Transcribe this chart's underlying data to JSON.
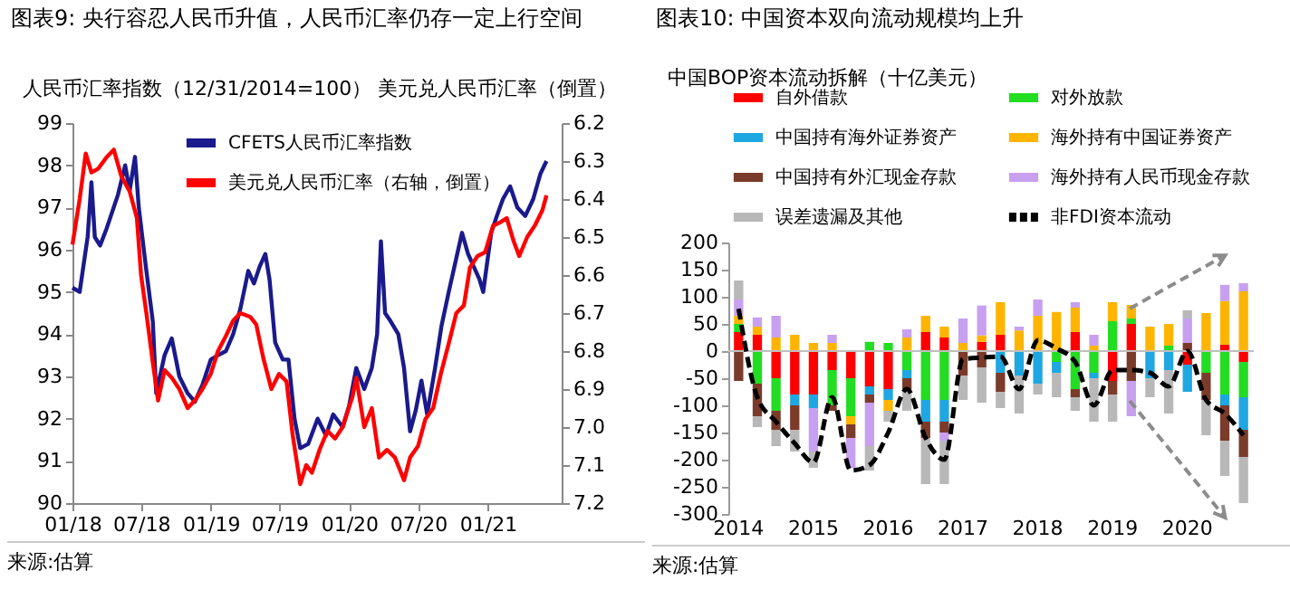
{
  "chart_data": [
    {
      "type": "line",
      "title": "图表9: 央行容忍人民币升值，人民币汇率仍存一定上行空间",
      "ylabel": "人民币汇率指数（12/31/2014=100）",
      "y2label": "美元兑人民币汇率（倒置）",
      "legend": "top",
      "xlim": [
        "2018-01-01",
        "2021-07-15"
      ],
      "xticks": [
        {
          "value": "2018-01-01",
          "label": "01/18"
        },
        {
          "value": "2018-07-01",
          "label": "07/18"
        },
        {
          "value": "2019-01-01",
          "label": "01/19"
        },
        {
          "value": "2019-07-01",
          "label": "07/19"
        },
        {
          "value": "2020-01-01",
          "label": "01/20"
        },
        {
          "value": "2020-07-01",
          "label": "07/20"
        },
        {
          "value": "2021-01-01",
          "label": "01/21"
        }
      ],
      "ylim": [
        90,
        99
      ],
      "yticks": [
        90,
        91,
        92,
        93,
        94,
        95,
        96,
        97,
        98,
        99
      ],
      "y2lim": [
        7.2,
        6.2
      ],
      "y2ticks": [
        6.2,
        6.3,
        6.4,
        6.5,
        6.6,
        6.7,
        6.8,
        6.9,
        {
          "value": 7,
          "label": "7.0"
        },
        7.1,
        7.2
      ],
      "series": [
        {
          "name": "CFETS人民币汇率指数",
          "color": "#1a1a8c",
          "x": [
            "2018-01-01",
            "2018-01-20",
            "2018-02-10",
            "2018-02-20",
            "2018-03-01",
            "2018-03-15",
            "2018-04-01",
            "2018-05-01",
            "2018-05-20",
            "2018-06-01",
            "2018-06-15",
            "2018-06-25",
            "2018-07-15",
            "2018-08-01",
            "2018-08-10",
            "2018-09-01",
            "2018-09-20",
            "2018-10-10",
            "2018-11-01",
            "2018-11-20",
            "2018-12-10",
            "2019-01-01",
            "2019-01-20",
            "2019-02-10",
            "2019-03-01",
            "2019-03-20",
            "2019-04-10",
            "2019-04-25",
            "2019-05-10",
            "2019-05-25",
            "2019-06-05",
            "2019-06-20",
            "2019-07-10",
            "2019-07-25",
            "2019-08-10",
            "2019-08-25",
            "2019-09-15",
            "2019-10-10",
            "2019-11-01",
            "2019-11-20",
            "2019-12-15",
            "2020-01-01",
            "2020-01-20",
            "2020-02-10",
            "2020-03-01",
            "2020-03-15",
            "2020-03-25",
            "2020-04-05",
            "2020-04-20",
            "2020-05-10",
            "2020-05-25",
            "2020-06-10",
            "2020-06-25",
            "2020-07-10",
            "2020-07-25",
            "2020-08-15",
            "2020-09-01",
            "2020-09-20",
            "2020-10-10",
            "2020-10-25",
            "2020-11-10",
            "2020-11-25",
            "2020-12-10",
            "2020-12-20",
            "2021-01-10",
            "2021-01-25",
            "2021-02-10",
            "2021-03-01",
            "2021-03-20",
            "2021-04-10",
            "2021-05-01",
            "2021-05-20",
            "2021-06-05"
          ],
          "values": [
            95.1,
            95.0,
            96.3,
            97.6,
            96.3,
            96.1,
            96.5,
            97.3,
            98.0,
            97.4,
            98.2,
            97.0,
            95.5,
            94.3,
            92.6,
            93.5,
            93.9,
            93.0,
            92.6,
            92.4,
            92.8,
            93.4,
            93.5,
            93.6,
            94.0,
            94.6,
            95.5,
            95.2,
            95.6,
            95.9,
            95.3,
            93.8,
            93.4,
            93.4,
            92.0,
            91.3,
            91.4,
            92.0,
            91.6,
            92.1,
            91.8,
            92.3,
            93.2,
            92.7,
            93.2,
            94.0,
            96.2,
            94.5,
            94.3,
            94.0,
            93.2,
            91.7,
            92.2,
            92.9,
            92.1,
            93.2,
            94.2,
            95.0,
            95.8,
            96.4,
            95.9,
            95.6,
            95.3,
            95.0,
            96.4,
            96.8,
            97.2,
            97.5,
            97.0,
            96.8,
            97.2,
            97.8,
            98.1
          ]
        },
        {
          "name": "美元兑人民币汇率（右轴，倒置）",
          "color": "#ff0000",
          "axis": "y2",
          "x": [
            "2018-01-01",
            "2018-01-20",
            "2018-02-05",
            "2018-02-20",
            "2018-03-10",
            "2018-04-01",
            "2018-04-20",
            "2018-05-10",
            "2018-06-01",
            "2018-06-20",
            "2018-07-01",
            "2018-07-15",
            "2018-08-01",
            "2018-08-15",
            "2018-09-01",
            "2018-09-20",
            "2018-10-10",
            "2018-11-01",
            "2018-11-20",
            "2018-12-10",
            "2019-01-01",
            "2019-01-20",
            "2019-02-10",
            "2019-03-01",
            "2019-03-20",
            "2019-04-15",
            "2019-05-01",
            "2019-05-20",
            "2019-06-10",
            "2019-06-30",
            "2019-07-20",
            "2019-08-05",
            "2019-08-25",
            "2019-09-10",
            "2019-09-25",
            "2019-10-15",
            "2019-11-05",
            "2019-11-25",
            "2019-12-15",
            "2020-01-10",
            "2020-01-20",
            "2020-02-10",
            "2020-03-01",
            "2020-03-20",
            "2020-04-10",
            "2020-05-01",
            "2020-05-25",
            "2020-06-10",
            "2020-07-01",
            "2020-07-20",
            "2020-08-10",
            "2020-08-30",
            "2020-09-20",
            "2020-10-10",
            "2020-10-30",
            "2020-11-15",
            "2020-12-05",
            "2020-12-25",
            "2021-01-15",
            "2021-02-05",
            "2021-02-20",
            "2021-03-10",
            "2021-03-25",
            "2021-04-15",
            "2021-05-05",
            "2021-05-25",
            "2021-06-05"
          ],
          "values": [
            6.52,
            6.4,
            6.28,
            6.33,
            6.32,
            6.29,
            6.27,
            6.34,
            6.38,
            6.45,
            6.6,
            6.7,
            6.83,
            6.93,
            6.85,
            6.87,
            6.9,
            6.95,
            6.93,
            6.9,
            6.86,
            6.8,
            6.76,
            6.72,
            6.7,
            6.71,
            6.73,
            6.82,
            6.9,
            6.86,
            6.88,
            7.02,
            7.15,
            7.1,
            7.12,
            7.06,
            7.01,
            7.03,
            7.0,
            6.92,
            6.87,
            7.0,
            6.95,
            7.08,
            7.06,
            7.08,
            7.14,
            7.08,
            7.05,
            6.98,
            6.95,
            6.86,
            6.78,
            6.7,
            6.68,
            6.58,
            6.55,
            6.54,
            6.47,
            6.46,
            6.45,
            6.51,
            6.55,
            6.5,
            6.47,
            6.43,
            6.39
          ]
        }
      ],
      "annotations": [
        "来源:估算"
      ]
    },
    {
      "type": "bar",
      "stacked": true,
      "title": "图表10: 中国资本双向流动规模均上升",
      "ylabel": "中国BOP资本流动拆解（十亿美元）",
      "legend": "top",
      "categories": [
        "2014",
        null,
        null,
        null,
        "2015",
        null,
        null,
        null,
        "2016",
        null,
        null,
        null,
        "2017",
        null,
        null,
        null,
        "2018",
        null,
        null,
        null,
        "2019",
        null,
        null,
        null,
        "2020",
        null,
        null,
        null
      ],
      "ylim": [
        -300,
        200
      ],
      "yticks": [
        -300,
        -250,
        -200,
        -150,
        -100,
        -50,
        0,
        50,
        100,
        150,
        200
      ],
      "ref_lines": [
        {
          "axis": "y",
          "value": 0,
          "color": "#bfbfbf"
        }
      ],
      "series": [
        {
          "name": "自外借款",
          "color": "#ff0000",
          "values": [
            35,
            30,
            -50,
            -80,
            -80,
            -35,
            -50,
            -65,
            -70,
            null,
            35,
            25,
            null,
            17,
            30,
            null,
            null,
            null,
            35,
            null,
            -55,
            50,
            null,
            null,
            -25,
            null,
            12,
            -20
          ]
        },
        {
          "name": "对外放款",
          "color": "#22dd22",
          "values": [
            15,
            -60,
            -60,
            null,
            null,
            -65,
            -70,
            17,
            15,
            -35,
            -90,
            -90,
            null,
            null,
            null,
            null,
            null,
            -20,
            -70,
            -40,
            55,
            10,
            null,
            10,
            null,
            -40,
            -80,
            -65
          ]
        },
        {
          "name": "中国持有海外证券资产",
          "color": "#1ea7e1",
          "values": [
            null,
            null,
            null,
            -20,
            -25,
            null,
            null,
            -15,
            -20,
            -15,
            -40,
            -40,
            null,
            null,
            -40,
            -45,
            -60,
            -20,
            null,
            -10,
            null,
            null,
            -50,
            -35,
            -50,
            null,
            -20,
            -60
          ]
        },
        {
          "name": "海外持有中国证券资产",
          "color": "#ffb400",
          "values": [
            15,
            15,
            25,
            30,
            15,
            15,
            -15,
            null,
            -20,
            25,
            30,
            20,
            15,
            12,
            60,
            38,
            65,
            72,
            45,
            10,
            35,
            25,
            45,
            40,
            null,
            70,
            80,
            110
          ]
        },
        {
          "name": "中国持有外汇现金存款",
          "color": "#7b3b2b",
          "values": [
            -55,
            -60,
            -35,
            -45,
            null,
            -10,
            -25,
            -15,
            null,
            -20,
            -30,
            -20,
            -45,
            -30,
            -35,
            null,
            null,
            null,
            -15,
            null,
            -25,
            -55,
            null,
            null,
            15,
            -50,
            -65,
            -50
          ]
        },
        {
          "name": "海外持有人民币现金存款",
          "color": "#c8a0f0",
          "values": [
            30,
            17,
            40,
            null,
            -80,
            15,
            -55,
            -80,
            null,
            15,
            null,
            -15,
            45,
            55,
            null,
            7,
            30,
            null,
            10,
            20,
            null,
            -65,
            null,
            null,
            45,
            null,
            30,
            15
          ]
        },
        {
          "name": "误差遗漏及其他",
          "color": "#b8b8b8",
          "values": [
            35,
            -20,
            -30,
            -40,
            -30,
            null,
            null,
            -45,
            -20,
            -40,
            -85,
            -80,
            -45,
            -65,
            -30,
            -70,
            -20,
            -45,
            -25,
            -80,
            -50,
            null,
            -35,
            -80,
            15,
            -65,
            -65,
            -85
          ]
        },
        {
          "name": "非FDI资本流动",
          "type": "line",
          "line_style": "dashed",
          "color": "#000000",
          "values": [
            78,
            -85,
            -130,
            -170,
            -205,
            -85,
            -220,
            -210,
            -150,
            -70,
            -160,
            -200,
            -15,
            -12,
            -10,
            -70,
            20,
            5,
            -20,
            -100,
            -35,
            -35,
            -40,
            -65,
            0,
            -90,
            -115,
            -155
          ]
        }
      ],
      "annotations": [
        "来源:估算"
      ]
    }
  ]
}
